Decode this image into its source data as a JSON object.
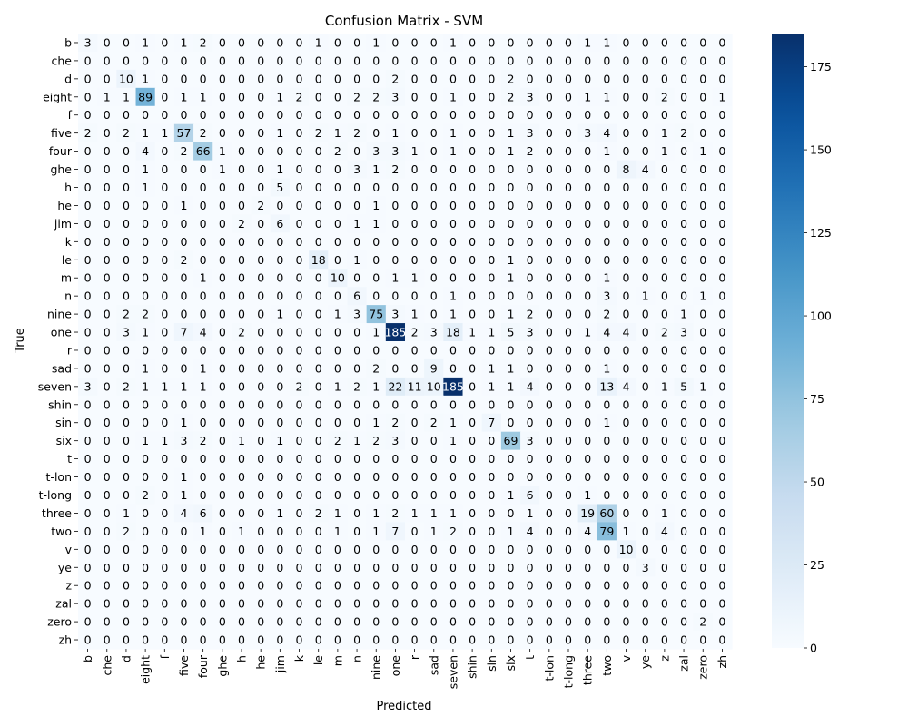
{
  "chart_data": {
    "type": "heatmap",
    "title": "Confusion Matrix - SVM",
    "xlabel": "Predicted",
    "ylabel": "True",
    "labels": [
      "b",
      "che",
      "d",
      "eight",
      "f",
      "five",
      "four",
      "ghe",
      "h",
      "he",
      "jim",
      "k",
      "le",
      "m",
      "n",
      "nine",
      "one",
      "r",
      "sad",
      "seven",
      "shin",
      "sin",
      "six",
      "t",
      "t-lon",
      "t-long",
      "three",
      "two",
      "v",
      "ye",
      "z",
      "zal",
      "zero",
      "zh"
    ],
    "matrix": [
      [
        3,
        0,
        0,
        1,
        0,
        1,
        2,
        0,
        0,
        0,
        0,
        0,
        1,
        0,
        0,
        1,
        0,
        0,
        0,
        1,
        0,
        0,
        0,
        0,
        0,
        0,
        1,
        1,
        0,
        0,
        0,
        0,
        0,
        0
      ],
      [
        0,
        0,
        0,
        0,
        0,
        0,
        0,
        0,
        0,
        0,
        0,
        0,
        0,
        0,
        0,
        0,
        0,
        0,
        0,
        0,
        0,
        0,
        0,
        0,
        0,
        0,
        0,
        0,
        0,
        0,
        0,
        0,
        0,
        0
      ],
      [
        0,
        0,
        10,
        1,
        0,
        0,
        0,
        0,
        0,
        0,
        0,
        0,
        0,
        0,
        0,
        0,
        2,
        0,
        0,
        0,
        0,
        0,
        2,
        0,
        0,
        0,
        0,
        0,
        0,
        0,
        0,
        0,
        0,
        0
      ],
      [
        0,
        1,
        1,
        89,
        0,
        1,
        1,
        0,
        0,
        0,
        1,
        2,
        0,
        0,
        2,
        2,
        3,
        0,
        0,
        1,
        0,
        0,
        2,
        3,
        0,
        0,
        1,
        1,
        0,
        0,
        2,
        0,
        0,
        1
      ],
      [
        0,
        0,
        0,
        0,
        0,
        0,
        0,
        0,
        0,
        0,
        0,
        0,
        0,
        0,
        0,
        0,
        0,
        0,
        0,
        0,
        0,
        0,
        0,
        0,
        0,
        0,
        0,
        0,
        0,
        0,
        0,
        0,
        0,
        0
      ],
      [
        2,
        0,
        2,
        1,
        1,
        57,
        2,
        0,
        0,
        0,
        1,
        0,
        2,
        1,
        2,
        0,
        1,
        0,
        0,
        1,
        0,
        0,
        1,
        3,
        0,
        0,
        3,
        4,
        0,
        0,
        1,
        2,
        0,
        0
      ],
      [
        0,
        0,
        0,
        4,
        0,
        2,
        66,
        1,
        0,
        0,
        0,
        0,
        0,
        2,
        0,
        3,
        3,
        1,
        0,
        1,
        0,
        0,
        1,
        2,
        0,
        0,
        0,
        1,
        0,
        0,
        1,
        0,
        1,
        0
      ],
      [
        0,
        0,
        0,
        1,
        0,
        0,
        0,
        1,
        0,
        0,
        1,
        0,
        0,
        0,
        3,
        1,
        2,
        0,
        0,
        0,
        0,
        0,
        0,
        0,
        0,
        0,
        0,
        0,
        8,
        4,
        0,
        0,
        0,
        0
      ],
      [
        0,
        0,
        0,
        1,
        0,
        0,
        0,
        0,
        0,
        0,
        5,
        0,
        0,
        0,
        0,
        0,
        0,
        0,
        0,
        0,
        0,
        0,
        0,
        0,
        0,
        0,
        0,
        0,
        0,
        0,
        0,
        0,
        0,
        0
      ],
      [
        0,
        0,
        0,
        0,
        0,
        1,
        0,
        0,
        0,
        2,
        0,
        0,
        0,
        0,
        0,
        1,
        0,
        0,
        0,
        0,
        0,
        0,
        0,
        0,
        0,
        0,
        0,
        0,
        0,
        0,
        0,
        0,
        0,
        0
      ],
      [
        0,
        0,
        0,
        0,
        0,
        0,
        0,
        0,
        2,
        0,
        6,
        0,
        0,
        0,
        1,
        1,
        0,
        0,
        0,
        0,
        0,
        0,
        0,
        0,
        0,
        0,
        0,
        0,
        0,
        0,
        0,
        0,
        0,
        0
      ],
      [
        0,
        0,
        0,
        0,
        0,
        0,
        0,
        0,
        0,
        0,
        0,
        0,
        0,
        0,
        0,
        0,
        0,
        0,
        0,
        0,
        0,
        0,
        0,
        0,
        0,
        0,
        0,
        0,
        0,
        0,
        0,
        0,
        0,
        0
      ],
      [
        0,
        0,
        0,
        0,
        0,
        2,
        0,
        0,
        0,
        0,
        0,
        0,
        18,
        0,
        1,
        0,
        0,
        0,
        0,
        0,
        0,
        0,
        1,
        0,
        0,
        0,
        0,
        0,
        0,
        0,
        0,
        0,
        0,
        0
      ],
      [
        0,
        0,
        0,
        0,
        0,
        0,
        1,
        0,
        0,
        0,
        0,
        0,
        0,
        10,
        0,
        0,
        1,
        1,
        0,
        0,
        0,
        0,
        1,
        0,
        0,
        0,
        0,
        1,
        0,
        0,
        0,
        0,
        0,
        0
      ],
      [
        0,
        0,
        0,
        0,
        0,
        0,
        0,
        0,
        0,
        0,
        0,
        0,
        0,
        0,
        6,
        0,
        0,
        0,
        0,
        1,
        0,
        0,
        0,
        0,
        0,
        0,
        0,
        3,
        0,
        1,
        0,
        0,
        1,
        0
      ],
      [
        0,
        0,
        2,
        2,
        0,
        0,
        0,
        0,
        0,
        0,
        1,
        0,
        0,
        1,
        3,
        75,
        3,
        1,
        0,
        1,
        0,
        0,
        1,
        2,
        0,
        0,
        0,
        2,
        0,
        0,
        0,
        1,
        0,
        0
      ],
      [
        0,
        0,
        3,
        1,
        0,
        7,
        4,
        0,
        2,
        0,
        0,
        0,
        0,
        0,
        0,
        1,
        185,
        2,
        3,
        18,
        1,
        1,
        5,
        3,
        0,
        0,
        1,
        4,
        4,
        0,
        2,
        3,
        0,
        0
      ],
      [
        0,
        0,
        0,
        0,
        0,
        0,
        0,
        0,
        0,
        0,
        0,
        0,
        0,
        0,
        0,
        0,
        0,
        0,
        0,
        0,
        0,
        0,
        0,
        0,
        0,
        0,
        0,
        0,
        0,
        0,
        0,
        0,
        0,
        0
      ],
      [
        0,
        0,
        0,
        1,
        0,
        0,
        1,
        0,
        0,
        0,
        0,
        0,
        0,
        0,
        0,
        2,
        0,
        0,
        9,
        0,
        0,
        1,
        1,
        0,
        0,
        0,
        0,
        1,
        0,
        0,
        0,
        0,
        0,
        0
      ],
      [
        3,
        0,
        2,
        1,
        1,
        1,
        1,
        0,
        0,
        0,
        0,
        2,
        0,
        1,
        2,
        1,
        22,
        11,
        10,
        185,
        0,
        1,
        1,
        4,
        0,
        0,
        0,
        13,
        4,
        0,
        1,
        5,
        1,
        0
      ],
      [
        0,
        0,
        0,
        0,
        0,
        0,
        0,
        0,
        0,
        0,
        0,
        0,
        0,
        0,
        0,
        0,
        0,
        0,
        0,
        0,
        0,
        0,
        0,
        0,
        0,
        0,
        0,
        0,
        0,
        0,
        0,
        0,
        0,
        0
      ],
      [
        0,
        0,
        0,
        0,
        0,
        1,
        0,
        0,
        0,
        0,
        0,
        0,
        0,
        0,
        0,
        1,
        2,
        0,
        2,
        1,
        0,
        7,
        0,
        0,
        0,
        0,
        0,
        1,
        0,
        0,
        0,
        0,
        0,
        0
      ],
      [
        0,
        0,
        0,
        1,
        1,
        3,
        2,
        0,
        1,
        0,
        1,
        0,
        0,
        2,
        1,
        2,
        3,
        0,
        0,
        1,
        0,
        0,
        69,
        3,
        0,
        0,
        0,
        0,
        0,
        0,
        0,
        0,
        0,
        0
      ],
      [
        0,
        0,
        0,
        0,
        0,
        0,
        0,
        0,
        0,
        0,
        0,
        0,
        0,
        0,
        0,
        0,
        0,
        0,
        0,
        0,
        0,
        0,
        0,
        0,
        0,
        0,
        0,
        0,
        0,
        0,
        0,
        0,
        0,
        0
      ],
      [
        0,
        0,
        0,
        0,
        0,
        1,
        0,
        0,
        0,
        0,
        0,
        0,
        0,
        0,
        0,
        0,
        0,
        0,
        0,
        0,
        0,
        0,
        0,
        0,
        0,
        0,
        0,
        0,
        0,
        0,
        0,
        0,
        0,
        0
      ],
      [
        0,
        0,
        0,
        2,
        0,
        1,
        0,
        0,
        0,
        0,
        0,
        0,
        0,
        0,
        0,
        0,
        0,
        0,
        0,
        0,
        0,
        0,
        1,
        6,
        0,
        0,
        1,
        0,
        0,
        0,
        0,
        0,
        0,
        0
      ],
      [
        0,
        0,
        1,
        0,
        0,
        4,
        6,
        0,
        0,
        0,
        1,
        0,
        2,
        1,
        0,
        1,
        2,
        1,
        1,
        1,
        0,
        0,
        0,
        1,
        0,
        0,
        19,
        60,
        0,
        0,
        1,
        0,
        0,
        0
      ],
      [
        0,
        0,
        2,
        0,
        0,
        0,
        1,
        0,
        1,
        0,
        0,
        0,
        0,
        1,
        0,
        1,
        7,
        0,
        1,
        2,
        0,
        0,
        1,
        4,
        0,
        0,
        4,
        79,
        1,
        0,
        4,
        0,
        0,
        0
      ],
      [
        0,
        0,
        0,
        0,
        0,
        0,
        0,
        0,
        0,
        0,
        0,
        0,
        0,
        0,
        0,
        0,
        0,
        0,
        0,
        0,
        0,
        0,
        0,
        0,
        0,
        0,
        0,
        0,
        10,
        0,
        0,
        0,
        0,
        0
      ],
      [
        0,
        0,
        0,
        0,
        0,
        0,
        0,
        0,
        0,
        0,
        0,
        0,
        0,
        0,
        0,
        0,
        0,
        0,
        0,
        0,
        0,
        0,
        0,
        0,
        0,
        0,
        0,
        0,
        0,
        3,
        0,
        0,
        0,
        0
      ],
      [
        0,
        0,
        0,
        0,
        0,
        0,
        0,
        0,
        0,
        0,
        0,
        0,
        0,
        0,
        0,
        0,
        0,
        0,
        0,
        0,
        0,
        0,
        0,
        0,
        0,
        0,
        0,
        0,
        0,
        0,
        0,
        0,
        0,
        0
      ],
      [
        0,
        0,
        0,
        0,
        0,
        0,
        0,
        0,
        0,
        0,
        0,
        0,
        0,
        0,
        0,
        0,
        0,
        0,
        0,
        0,
        0,
        0,
        0,
        0,
        0,
        0,
        0,
        0,
        0,
        0,
        0,
        0,
        0,
        0
      ],
      [
        0,
        0,
        0,
        0,
        0,
        0,
        0,
        0,
        0,
        0,
        0,
        0,
        0,
        0,
        0,
        0,
        0,
        0,
        0,
        0,
        0,
        0,
        0,
        0,
        0,
        0,
        0,
        0,
        0,
        0,
        0,
        0,
        2,
        0
      ],
      [
        0,
        0,
        0,
        0,
        0,
        0,
        0,
        0,
        0,
        0,
        0,
        0,
        0,
        0,
        0,
        0,
        0,
        0,
        0,
        0,
        0,
        0,
        0,
        0,
        0,
        0,
        0,
        0,
        0,
        0,
        0,
        0,
        0,
        0
      ]
    ],
    "colorbar": {
      "min": 0,
      "max": 185,
      "ticks": [
        0,
        25,
        50,
        75,
        100,
        125,
        150,
        175
      ]
    },
    "colormap": "Blues",
    "colors": {
      "low": "#f7fbff",
      "high": "#08306b",
      "text_light": "#ffffff",
      "text_dark": "#000000"
    },
    "grid": false,
    "legend": "colorbar-right"
  }
}
